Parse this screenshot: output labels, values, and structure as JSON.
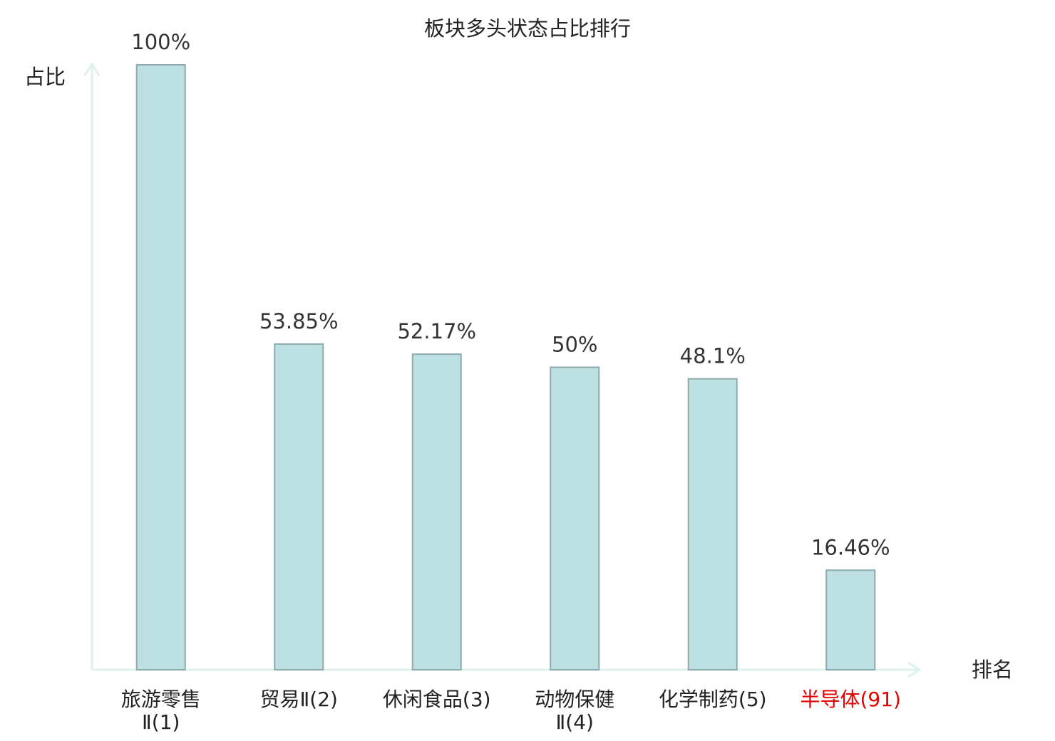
{
  "chart_data": {
    "type": "bar",
    "title": "板块多头状态占比排行",
    "y_label": "占比",
    "x_label": "排名",
    "categories": [
      [
        "旅游零售",
        "Ⅱ(1)"
      ],
      [
        "贸易Ⅱ(2)"
      ],
      [
        "休闲食品(3)"
      ],
      [
        "动物保健",
        "Ⅱ(4)"
      ],
      [
        "化学制药(5)"
      ],
      [
        "半导体(91)"
      ]
    ],
    "category_colors": [
      "#222222",
      "#222222",
      "#222222",
      "#222222",
      "#222222",
      "#e60000"
    ],
    "values": [
      100,
      53.85,
      52.17,
      50,
      48.1,
      16.46
    ],
    "value_labels": [
      "100%",
      "53.85%",
      "52.17%",
      "50%",
      "48.1%",
      "16.46%"
    ],
    "color": "#bde0e2",
    "edge_color": "#8eaaad",
    "axis_color": "#ddf1ee",
    "ylim": [
      0,
      100
    ]
  }
}
